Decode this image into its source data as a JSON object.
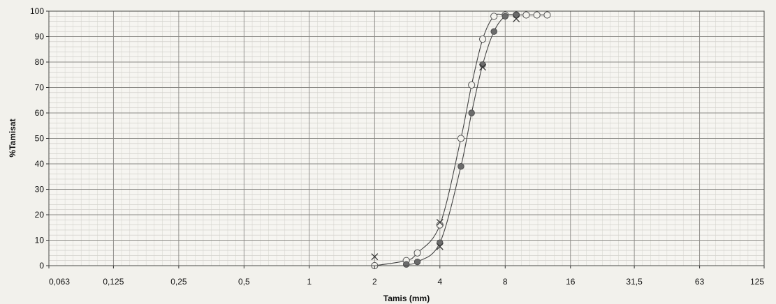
{
  "chart_data": {
    "type": "scatter",
    "title": "",
    "xlabel": "Tamis (mm)",
    "ylabel": "%Tamisat",
    "x_scale": "log",
    "x_ticks": [
      "0,063",
      "0,125",
      "0,25",
      "0,5",
      "1",
      "2",
      "4",
      "8",
      "16",
      "31,5",
      "63",
      "125"
    ],
    "x_tick_values": [
      0.063,
      0.125,
      0.25,
      0.5,
      1,
      2,
      4,
      8,
      16,
      31.5,
      63,
      125
    ],
    "xlim": [
      0.063,
      125
    ],
    "ylim": [
      0,
      100
    ],
    "y_ticks": [
      0,
      10,
      20,
      30,
      40,
      50,
      60,
      70,
      80,
      90,
      100
    ],
    "grid": true,
    "legend": "none",
    "series": [
      {
        "marker": "open-circle",
        "color": "#555555",
        "points": [
          {
            "x": 2,
            "y": 0
          },
          {
            "x": 2.8,
            "y": 2
          },
          {
            "x": 3.15,
            "y": 5
          },
          {
            "x": 4,
            "y": 16
          },
          {
            "x": 5,
            "y": 50
          },
          {
            "x": 5.6,
            "y": 71
          },
          {
            "x": 6.3,
            "y": 89
          },
          {
            "x": 7.1,
            "y": 98
          },
          {
            "x": 8,
            "y": 98.5
          },
          {
            "x": 9,
            "y": 98.5
          },
          {
            "x": 10,
            "y": 98.5
          },
          {
            "x": 11.2,
            "y": 98.5
          },
          {
            "x": 12.5,
            "y": 98.5
          }
        ]
      },
      {
        "marker": "filled-circle",
        "color": "#555555",
        "points": [
          {
            "x": 2.8,
            "y": 0.5
          },
          {
            "x": 3.15,
            "y": 1.5
          },
          {
            "x": 4,
            "y": 9
          },
          {
            "x": 5,
            "y": 39
          },
          {
            "x": 5.6,
            "y": 60
          },
          {
            "x": 6.3,
            "y": 79
          },
          {
            "x": 7.1,
            "y": 92
          },
          {
            "x": 8,
            "y": 98
          },
          {
            "x": 9,
            "y": 98.5
          }
        ]
      },
      {
        "marker": "cross",
        "color": "#555555",
        "points": [
          {
            "x": 2,
            "y": 3.5
          },
          {
            "x": 4,
            "y": 7.5
          },
          {
            "x": 4,
            "y": 17
          },
          {
            "x": 6.3,
            "y": 78
          },
          {
            "x": 9,
            "y": 97
          }
        ]
      }
    ]
  }
}
